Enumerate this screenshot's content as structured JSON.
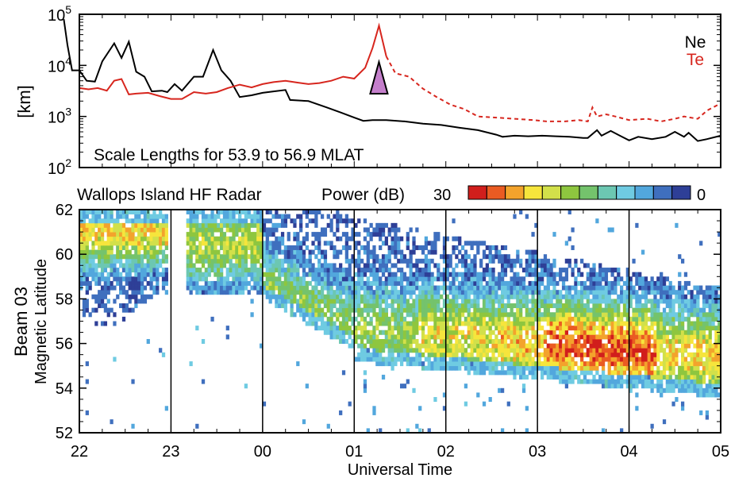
{
  "chart_data": [
    {
      "type": "line",
      "ylabel": "[km]",
      "yscale": "log",
      "ylim": [
        100,
        100000
      ],
      "yticks": [
        {
          "value": 100,
          "base": "10",
          "exp": "2"
        },
        {
          "value": 1000,
          "base": "10",
          "exp": "3"
        },
        {
          "value": 10000,
          "base": "10",
          "exp": "4"
        },
        {
          "value": 100000,
          "base": "10",
          "exp": "5"
        }
      ],
      "xlim": [
        22,
        29
      ],
      "annotation": "Scale Lengths for 53.9 to 56.9 MLAT",
      "series": [
        {
          "name": "Ne",
          "color": "#000000",
          "style": "solid",
          "points": [
            [
              21.83,
              80000
            ],
            [
              21.87,
              25000
            ],
            [
              21.92,
              8000
            ],
            [
              22.0,
              8000
            ],
            [
              22.08,
              5000
            ],
            [
              22.17,
              4800
            ],
            [
              22.25,
              12000
            ],
            [
              22.38,
              27000
            ],
            [
              22.46,
              14000
            ],
            [
              22.54,
              29000
            ],
            [
              22.62,
              7500
            ],
            [
              22.71,
              6000
            ],
            [
              22.79,
              3100
            ],
            [
              22.9,
              3200
            ],
            [
              22.96,
              3000
            ],
            [
              23.04,
              4300
            ],
            [
              23.12,
              3200
            ],
            [
              23.25,
              6000
            ],
            [
              23.35,
              6000
            ],
            [
              23.46,
              20000
            ],
            [
              23.55,
              8000
            ],
            [
              23.65,
              5000
            ],
            [
              23.75,
              2400
            ],
            [
              23.88,
              2600
            ],
            [
              24.0,
              2900
            ],
            [
              24.12,
              3100
            ],
            [
              24.25,
              3300
            ],
            [
              24.3,
              2100
            ],
            [
              24.5,
              2000
            ],
            [
              24.7,
              1500
            ],
            [
              24.85,
              1200
            ],
            [
              25.0,
              950
            ],
            [
              25.1,
              820
            ],
            [
              25.2,
              850
            ],
            [
              25.35,
              850
            ],
            [
              25.55,
              800
            ],
            [
              25.75,
              720
            ],
            [
              25.95,
              680
            ],
            [
              26.15,
              600
            ],
            [
              26.35,
              540
            ],
            [
              26.55,
              440
            ],
            [
              26.62,
              400
            ],
            [
              26.75,
              420
            ],
            [
              26.9,
              410
            ],
            [
              27.05,
              420
            ],
            [
              27.2,
              410
            ],
            [
              27.35,
              400
            ],
            [
              27.5,
              380
            ],
            [
              27.55,
              380
            ],
            [
              27.65,
              540
            ],
            [
              27.7,
              420
            ],
            [
              27.8,
              520
            ],
            [
              27.9,
              420
            ],
            [
              28.0,
              340
            ],
            [
              28.1,
              400
            ],
            [
              28.25,
              360
            ],
            [
              28.4,
              400
            ],
            [
              28.5,
              500
            ],
            [
              28.6,
              400
            ],
            [
              28.65,
              480
            ],
            [
              28.75,
              330
            ],
            [
              28.85,
              360
            ],
            [
              29.0,
              420
            ]
          ]
        },
        {
          "name": "Te",
          "color": "#d7261e",
          "style": "solid-then-dashed",
          "dash_start_x": 25.35,
          "points": [
            [
              22.0,
              3600
            ],
            [
              22.1,
              3400
            ],
            [
              22.2,
              3600
            ],
            [
              22.3,
              3200
            ],
            [
              22.38,
              5000
            ],
            [
              22.46,
              5400
            ],
            [
              22.54,
              2700
            ],
            [
              22.62,
              2800
            ],
            [
              22.75,
              2900
            ],
            [
              22.88,
              2500
            ],
            [
              23.0,
              2200
            ],
            [
              23.12,
              2200
            ],
            [
              23.25,
              3000
            ],
            [
              23.38,
              2800
            ],
            [
              23.5,
              3000
            ],
            [
              23.62,
              3600
            ],
            [
              23.75,
              4200
            ],
            [
              23.88,
              3700
            ],
            [
              24.0,
              4300
            ],
            [
              24.12,
              4700
            ],
            [
              24.25,
              5000
            ],
            [
              24.38,
              4600
            ],
            [
              24.5,
              4300
            ],
            [
              24.62,
              4500
            ],
            [
              24.75,
              5000
            ],
            [
              24.88,
              6000
            ],
            [
              25.0,
              5500
            ],
            [
              25.12,
              9000
            ],
            [
              25.2,
              22000
            ],
            [
              25.27,
              60000
            ],
            [
              25.35,
              15000
            ],
            [
              25.45,
              7000
            ],
            [
              25.6,
              6000
            ],
            [
              25.75,
              3500
            ],
            [
              25.9,
              2400
            ],
            [
              26.05,
              1700
            ],
            [
              26.2,
              1400
            ],
            [
              26.35,
              1000
            ],
            [
              26.55,
              950
            ],
            [
              26.75,
              900
            ],
            [
              26.95,
              850
            ],
            [
              27.1,
              800
            ],
            [
              27.3,
              800
            ],
            [
              27.45,
              850
            ],
            [
              27.55,
              800
            ],
            [
              27.6,
              1500
            ],
            [
              27.65,
              1000
            ],
            [
              27.75,
              1100
            ],
            [
              27.85,
              1000
            ],
            [
              28.0,
              850
            ],
            [
              28.2,
              900
            ],
            [
              28.35,
              800
            ],
            [
              28.5,
              900
            ],
            [
              28.6,
              1000
            ],
            [
              28.75,
              900
            ],
            [
              28.85,
              1300
            ],
            [
              29.0,
              1800
            ]
          ]
        }
      ],
      "marker": {
        "shape": "triangle",
        "color": "#c47fcb",
        "x": 25.27
      },
      "legend": {
        "position": "top-right",
        "entries": [
          "Ne",
          "Te"
        ]
      }
    },
    {
      "type": "heatmap",
      "title": "Wallops Island HF Radar",
      "xlabel": "Universal Time",
      "ylabel_lines": [
        "Beam 03",
        "Magnetic Latitude"
      ],
      "xlim": [
        22,
        29
      ],
      "ylim": [
        52,
        62
      ],
      "xtick_labels": [
        "22",
        "23",
        "00",
        "01",
        "02",
        "03",
        "04",
        "05"
      ],
      "ytick_labels": [
        "52",
        "54",
        "56",
        "58",
        "60",
        "62"
      ],
      "colorbar": {
        "label": "Power (dB)",
        "max_label": "30",
        "min_label": "0",
        "colors": [
          "#d11e1c",
          "#ea5b22",
          "#f3a32c",
          "#f6e53c",
          "#d2e04a",
          "#8ec63f",
          "#74c36c",
          "#6cc7b2",
          "#6fcbe2",
          "#52a7dd",
          "#3f6fbe",
          "#2e3f97"
        ]
      },
      "hour_gridlines": [
        23,
        24,
        25,
        26,
        27,
        28
      ]
    }
  ]
}
